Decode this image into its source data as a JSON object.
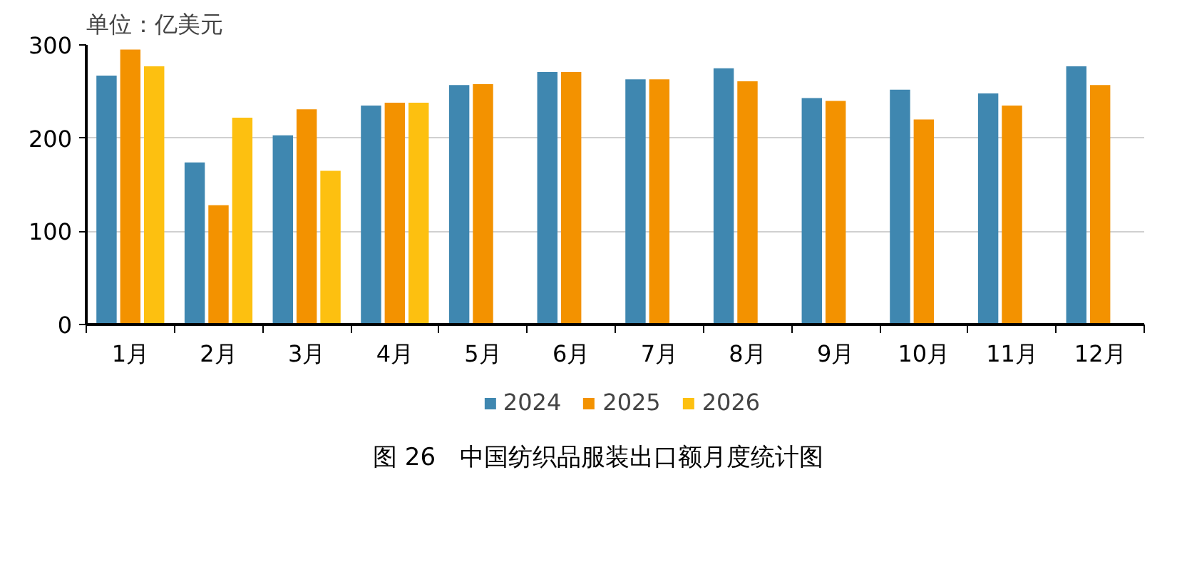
{
  "chart_data": {
    "type": "bar",
    "title": "图 26　中国纺织品服装出口额月度统计图",
    "ylabel": "单位：亿美元",
    "categories": [
      "1月",
      "2月",
      "3月",
      "4月",
      "5月",
      "6月",
      "7月",
      "8月",
      "9月",
      "10月",
      "11月",
      "12月"
    ],
    "series": [
      {
        "name": "2024",
        "color": "#3f87b0",
        "values": [
          267,
          174,
          203,
          235,
          257,
          271,
          263,
          275,
          243,
          252,
          248,
          277
        ]
      },
      {
        "name": "2025",
        "color": "#f39200",
        "values": [
          295,
          128,
          231,
          238,
          258,
          271,
          263,
          261,
          240,
          220,
          235,
          257
        ]
      },
      {
        "name": "2026",
        "color": "#fdc010",
        "values": [
          277,
          222,
          165,
          238,
          null,
          null,
          null,
          null,
          null,
          null,
          null,
          null
        ]
      }
    ],
    "ylim": [
      0,
      300
    ],
    "yticks": [
      0,
      100,
      200,
      300
    ],
    "grid": "y",
    "legend": "bottom"
  }
}
